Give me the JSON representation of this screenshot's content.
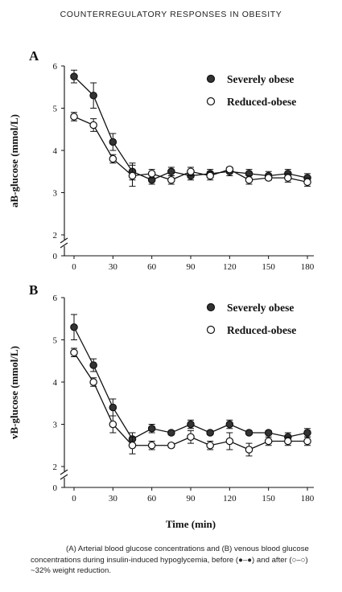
{
  "header": "COUNTERREGULATORY RESPONSES IN OBESITY",
  "caption": "(A) Arterial blood glucose concentrations and (B) venous blood glucose concentrations during insulin-induced hypoglycemia, before (●–●) and after (○–○) ~32% weight reduction.",
  "chart_data": [
    {
      "type": "line",
      "panel": "A",
      "ylabel": "aB-glucose (mmol/L)",
      "xlabel": "",
      "xlim": [
        0,
        180
      ],
      "ylim": [
        0,
        6
      ],
      "x_ticks": [
        0,
        30,
        60,
        90,
        120,
        150,
        180
      ],
      "y_ticks": [
        0,
        2,
        3,
        4,
        5,
        6
      ],
      "axis_break": true,
      "legend_position": "top-right",
      "x": [
        0,
        15,
        30,
        45,
        60,
        75,
        90,
        105,
        120,
        135,
        150,
        165,
        180
      ],
      "series": [
        {
          "name": "Severely obese",
          "marker": "filled-circle",
          "values": [
            5.75,
            5.3,
            4.2,
            3.5,
            3.3,
            3.5,
            3.4,
            3.45,
            3.5,
            3.45,
            3.4,
            3.45,
            3.35
          ],
          "errors": [
            0.15,
            0.3,
            0.2,
            0.2,
            0.1,
            0.1,
            0.1,
            0.1,
            0.1,
            0.1,
            0.1,
            0.1,
            0.1
          ]
        },
        {
          "name": "Reduced-obese",
          "marker": "open-circle",
          "values": [
            4.8,
            4.6,
            3.8,
            3.4,
            3.45,
            3.3,
            3.5,
            3.4,
            3.55,
            3.3,
            3.35,
            3.35,
            3.25
          ],
          "errors": [
            0.1,
            0.15,
            0.1,
            0.25,
            0.1,
            0.1,
            0.1,
            0.1,
            0.05,
            0.1,
            0.05,
            0.1,
            0.1
          ]
        }
      ]
    },
    {
      "type": "line",
      "panel": "B",
      "ylabel": "vB-glucose (mmol/L)",
      "xlabel": "Time (min)",
      "xlim": [
        0,
        180
      ],
      "ylim": [
        0,
        6
      ],
      "x_ticks": [
        0,
        30,
        60,
        90,
        120,
        150,
        180
      ],
      "y_ticks": [
        0,
        2,
        3,
        4,
        5,
        6
      ],
      "axis_break": true,
      "legend_position": "top-right",
      "x": [
        0,
        15,
        30,
        45,
        60,
        75,
        90,
        105,
        120,
        135,
        150,
        165,
        180
      ],
      "series": [
        {
          "name": "Severely obese",
          "marker": "filled-circle",
          "values": [
            5.3,
            4.4,
            3.4,
            2.65,
            2.9,
            2.8,
            3.0,
            2.8,
            3.0,
            2.8,
            2.8,
            2.7,
            2.8
          ],
          "errors": [
            0.3,
            0.15,
            0.2,
            0.15,
            0.1,
            0.05,
            0.1,
            0.05,
            0.1,
            0.05,
            0.05,
            0.1,
            0.1
          ]
        },
        {
          "name": "Reduced-obese",
          "marker": "open-circle",
          "values": [
            4.7,
            4.0,
            3.0,
            2.5,
            2.5,
            2.5,
            2.7,
            2.5,
            2.6,
            2.4,
            2.6,
            2.6,
            2.6
          ],
          "errors": [
            0.1,
            0.1,
            0.2,
            0.2,
            0.1,
            0.05,
            0.15,
            0.1,
            0.2,
            0.15,
            0.1,
            0.1,
            0.1
          ]
        }
      ]
    }
  ]
}
